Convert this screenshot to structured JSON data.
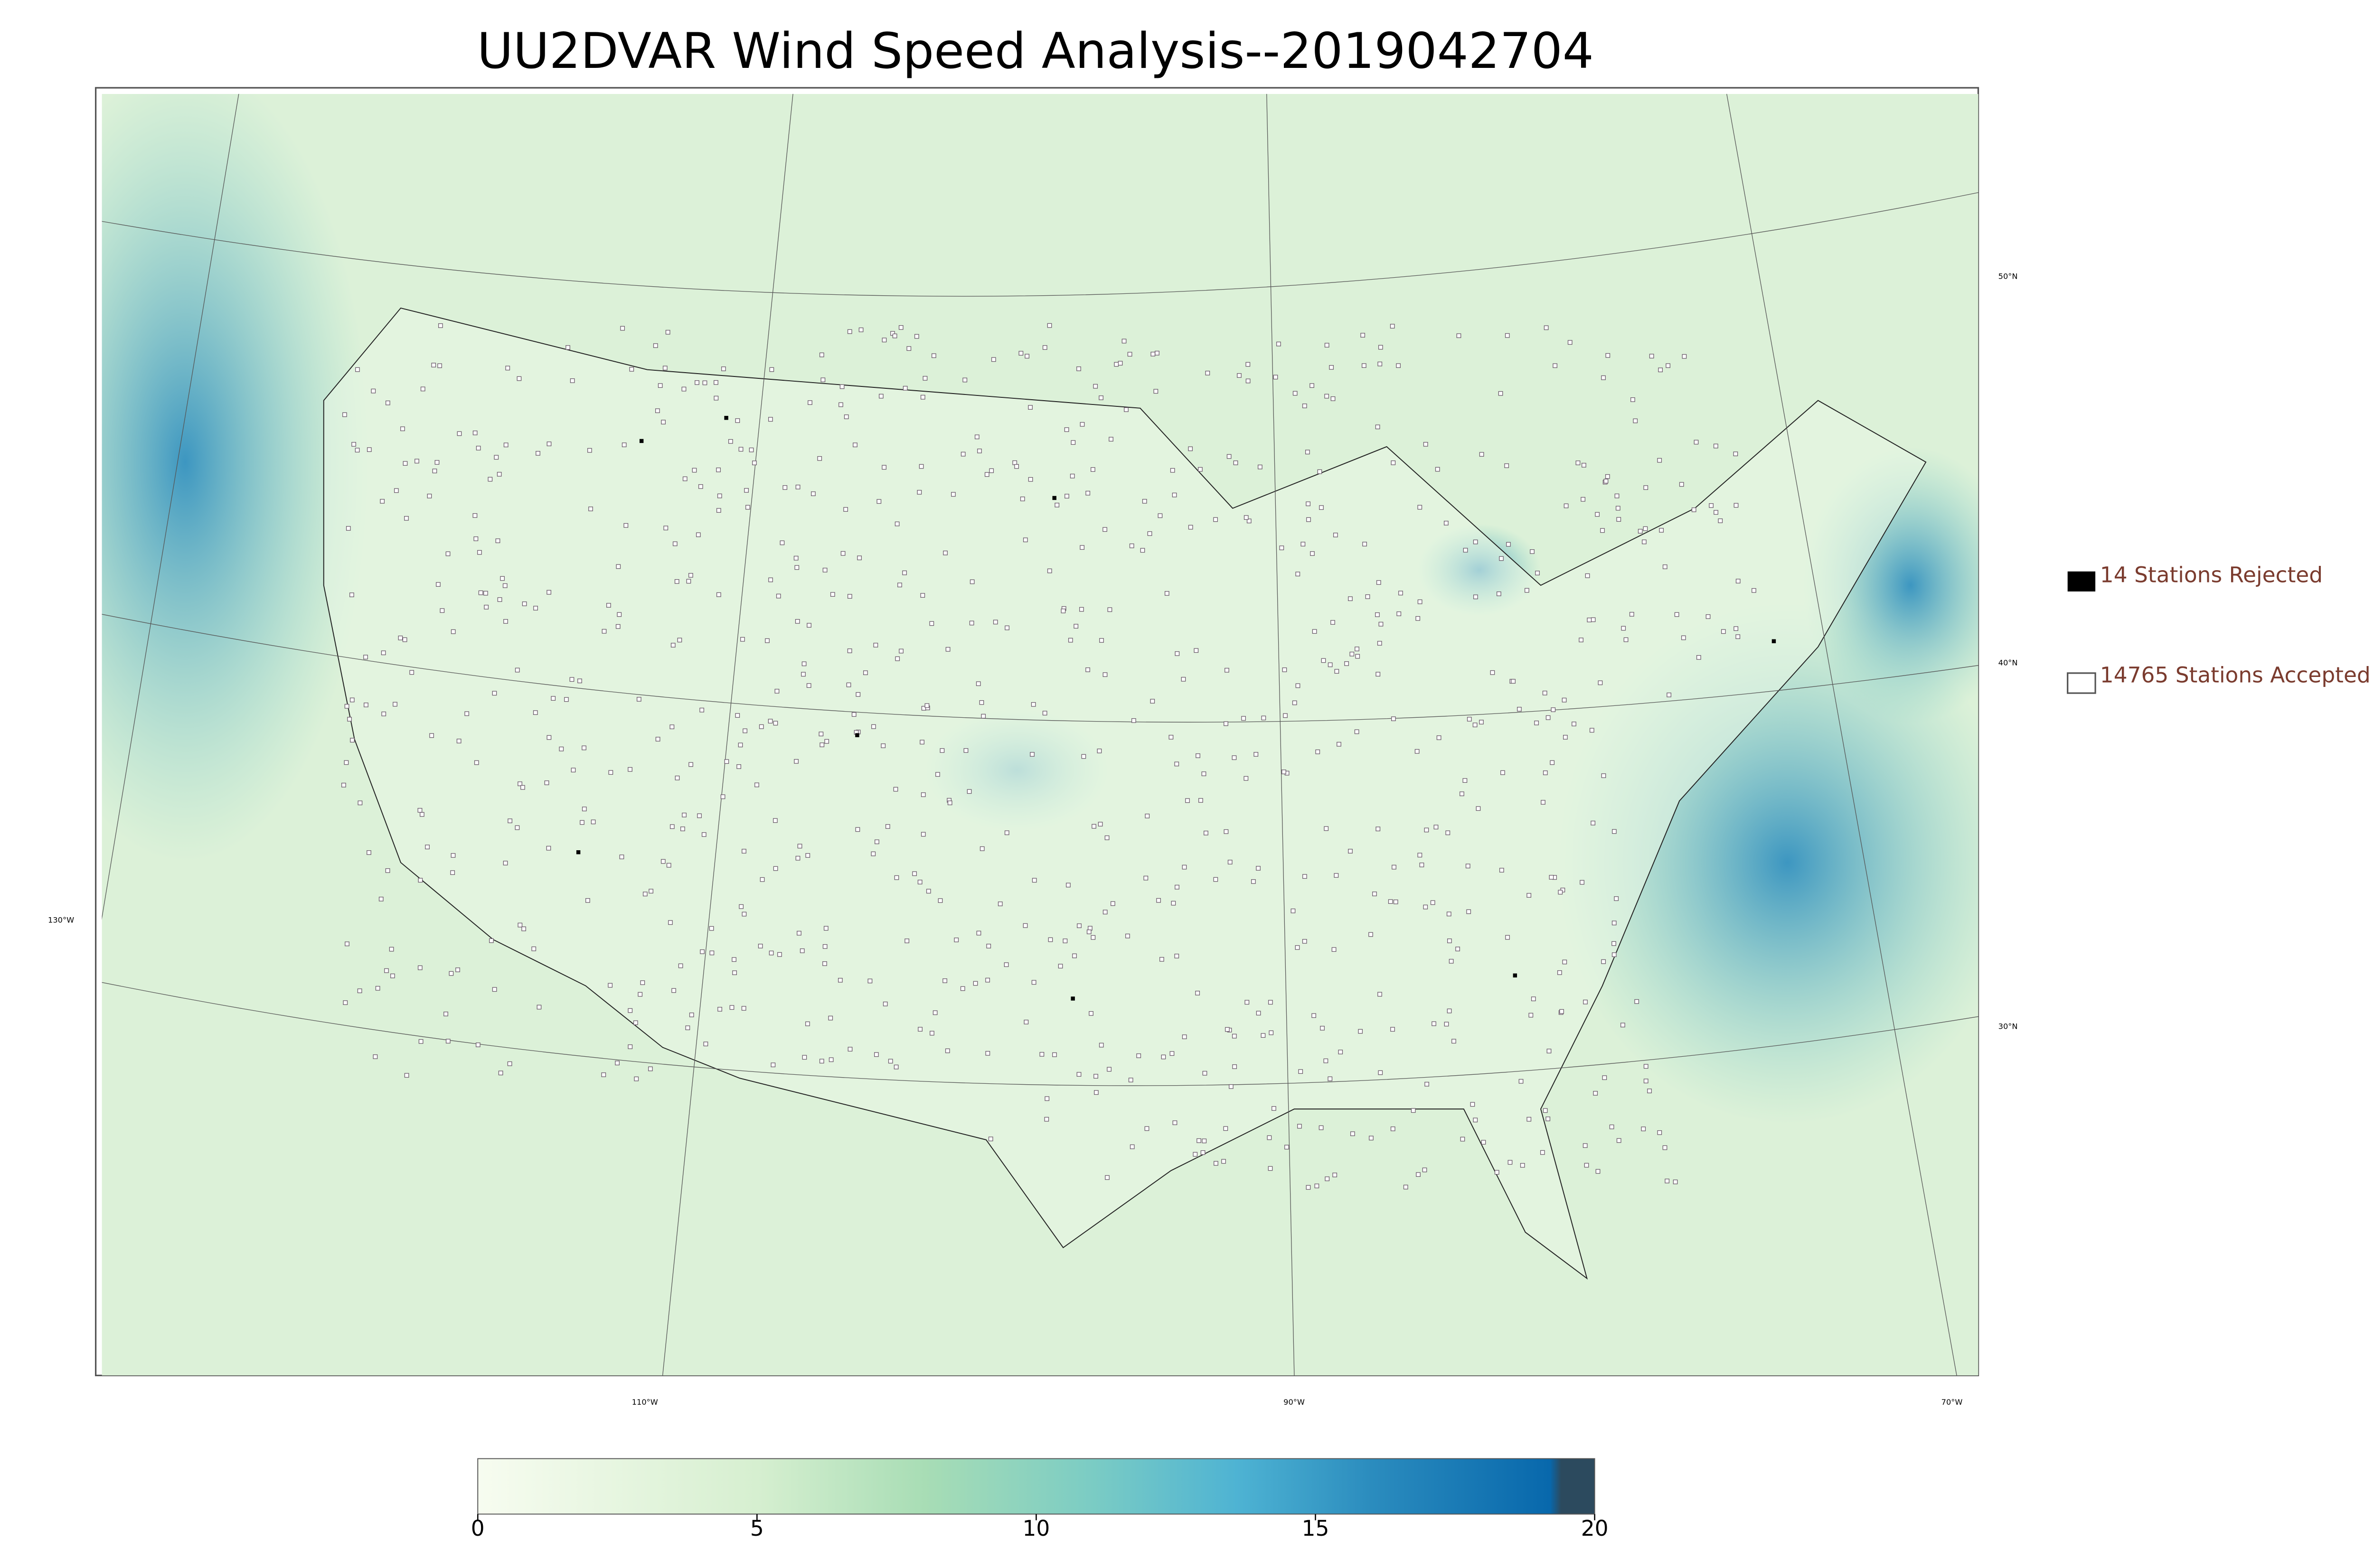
{
  "title": "UU2DVAR Wind Speed Analysis--2019042704",
  "legend": [
    "14 Stations Rejected",
    "14765 Stations Accepted"
  ],
  "graticule": {
    "lat_labels": [
      "50°N",
      "40°N",
      "30°N"
    ],
    "lon_labels": [
      "130°W",
      "110°W",
      "90°W",
      "70°W"
    ]
  },
  "colorbar": {
    "lim": [
      0,
      20
    ],
    "ticks": [
      0,
      5,
      10,
      15,
      20
    ]
  }
}
